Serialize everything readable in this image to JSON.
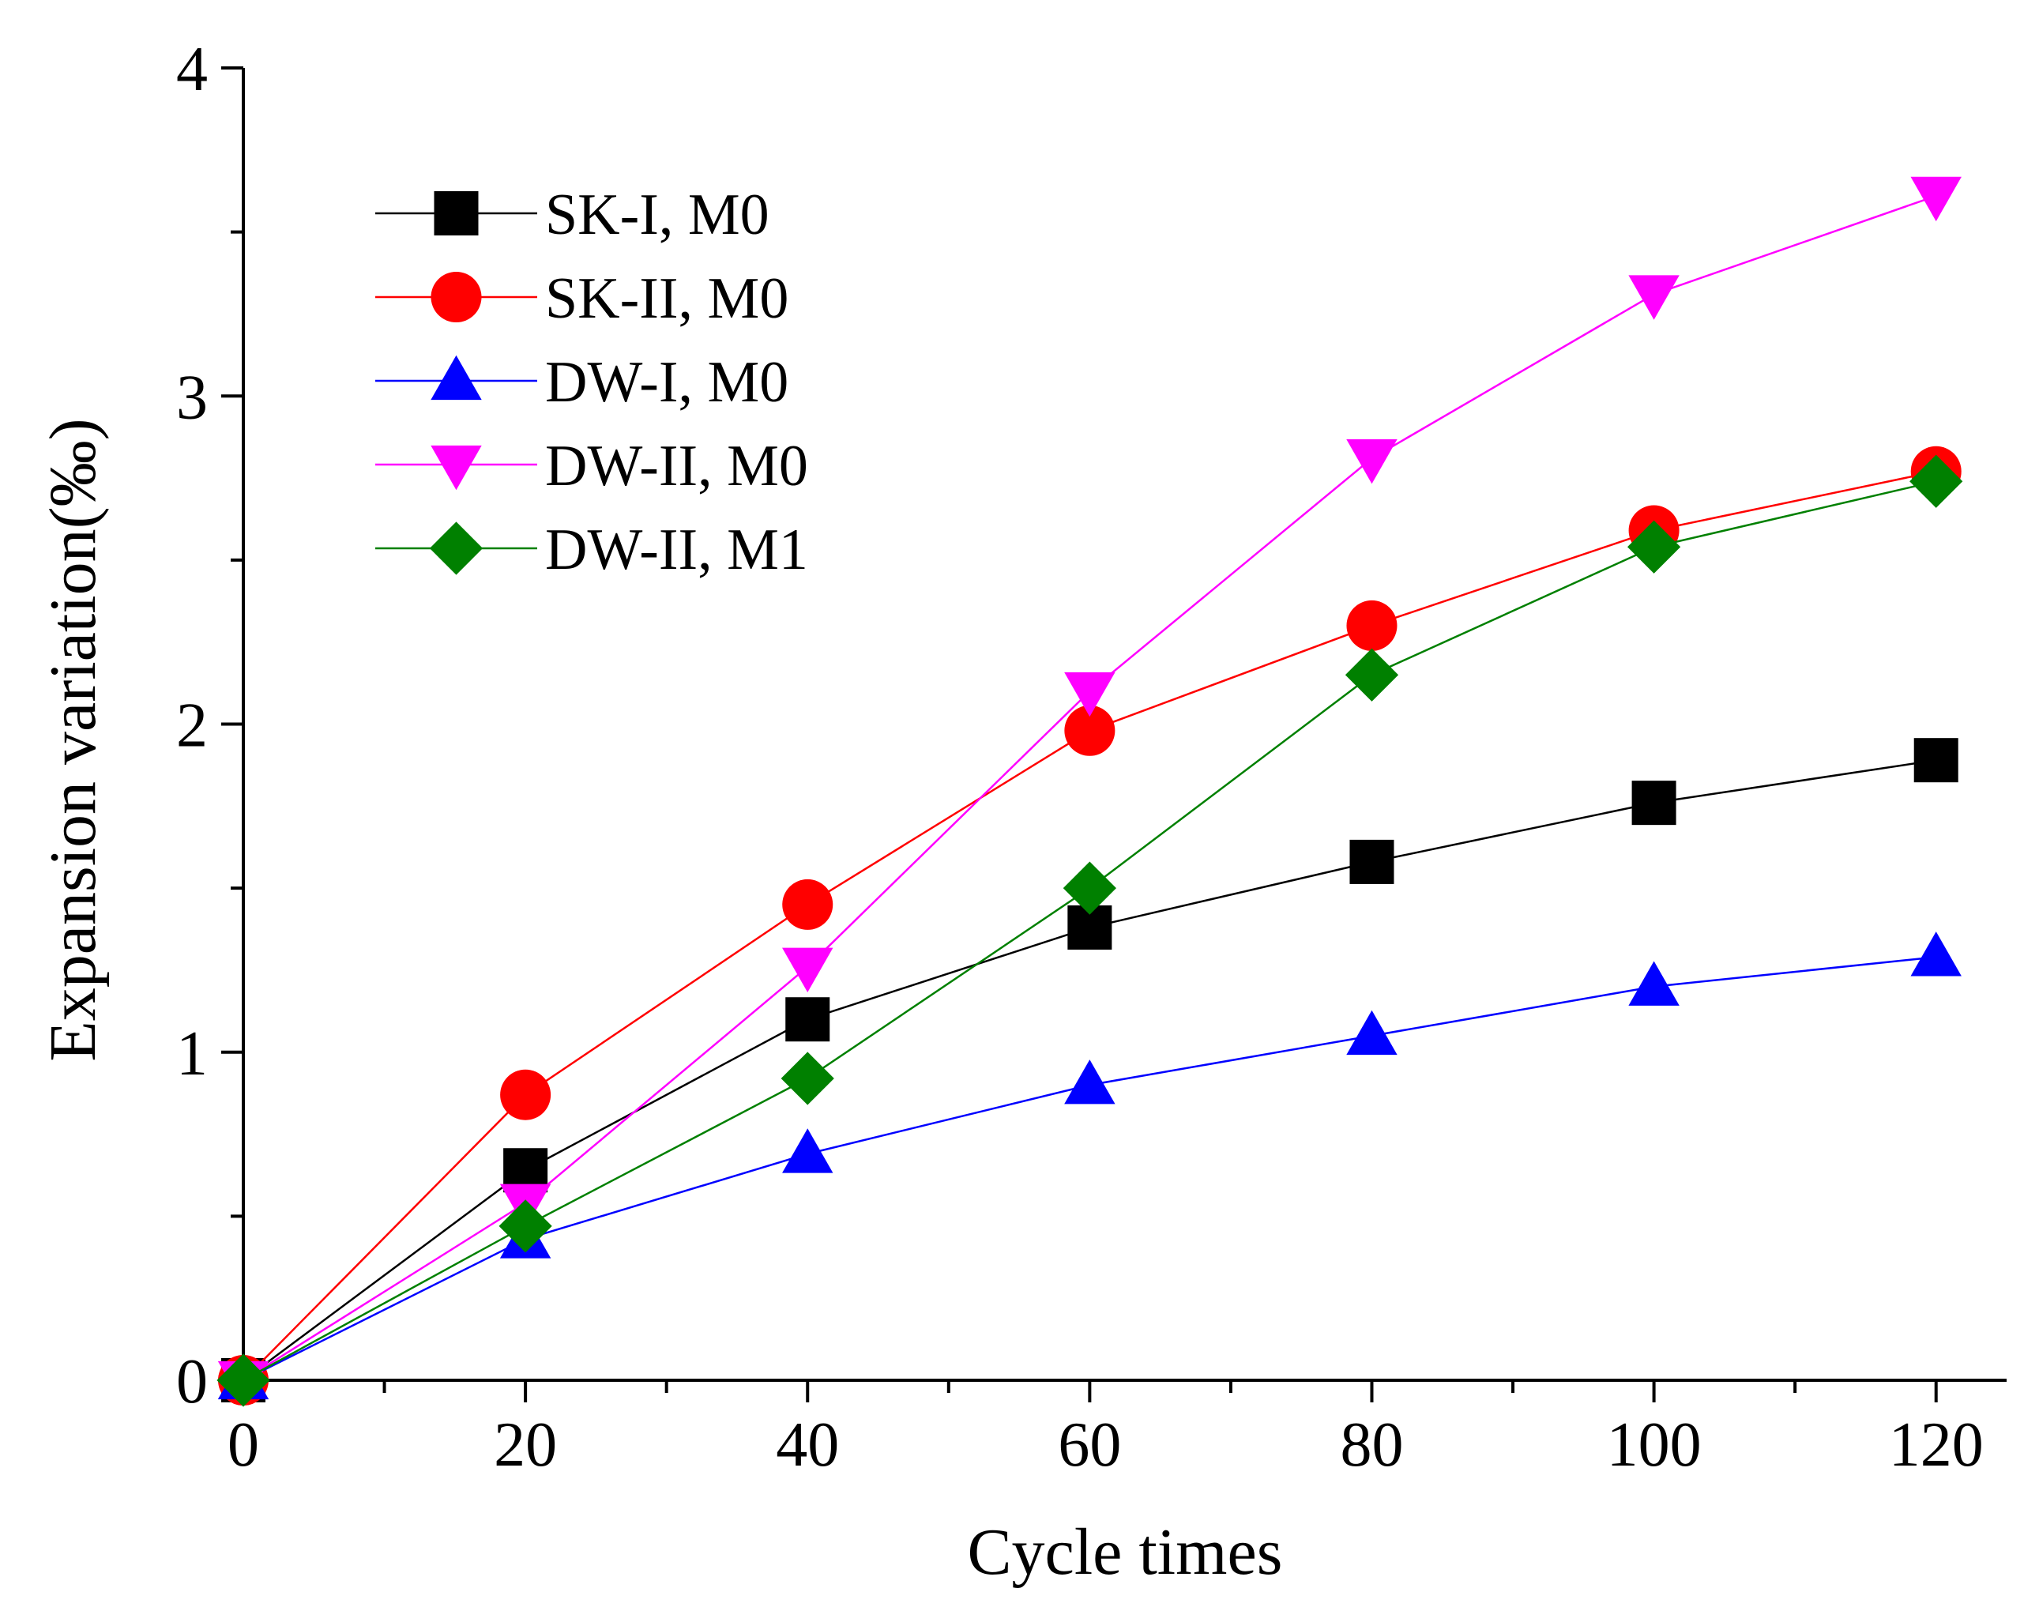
{
  "chart_data": {
    "type": "line",
    "title": "",
    "xlabel": "Cycle times",
    "ylabel": "Expansion variation(‰)",
    "x": [
      0,
      20,
      40,
      60,
      80,
      100,
      120
    ],
    "xlim": [
      0,
      125
    ],
    "ylim": [
      0,
      4
    ],
    "xticks": [
      0,
      20,
      40,
      60,
      80,
      100,
      120
    ],
    "xtick_labels": [
      "0",
      "20",
      "40",
      "60",
      "80",
      "100",
      "120"
    ],
    "yticks": [
      0,
      1,
      2,
      3,
      4
    ],
    "ytick_labels": [
      "0",
      "1",
      "2",
      "3",
      "4"
    ],
    "grid": false,
    "legend_position": "top-left",
    "series": [
      {
        "name": "SK-I, M0",
        "color": "#000000",
        "marker": "square",
        "values": [
          0,
          0.64,
          1.1,
          1.38,
          1.58,
          1.76,
          1.89
        ]
      },
      {
        "name": "SK-II, M0",
        "color": "#ff0000",
        "marker": "circle",
        "values": [
          0,
          0.87,
          1.45,
          1.98,
          2.3,
          2.59,
          2.77
        ]
      },
      {
        "name": "DW-I, M0",
        "color": "#0000ff",
        "marker": "triangle-up",
        "values": [
          0,
          0.43,
          0.69,
          0.9,
          1.05,
          1.2,
          1.29
        ]
      },
      {
        "name": "DW-II, M0",
        "color": "#ff00ff",
        "marker": "triangle-down",
        "values": [
          0,
          0.54,
          1.26,
          2.1,
          2.81,
          3.31,
          3.61
        ]
      },
      {
        "name": "DW-II, M1",
        "color": "#008000",
        "marker": "diamond",
        "values": [
          0,
          0.47,
          0.92,
          1.5,
          2.15,
          2.54,
          2.74
        ]
      }
    ]
  }
}
